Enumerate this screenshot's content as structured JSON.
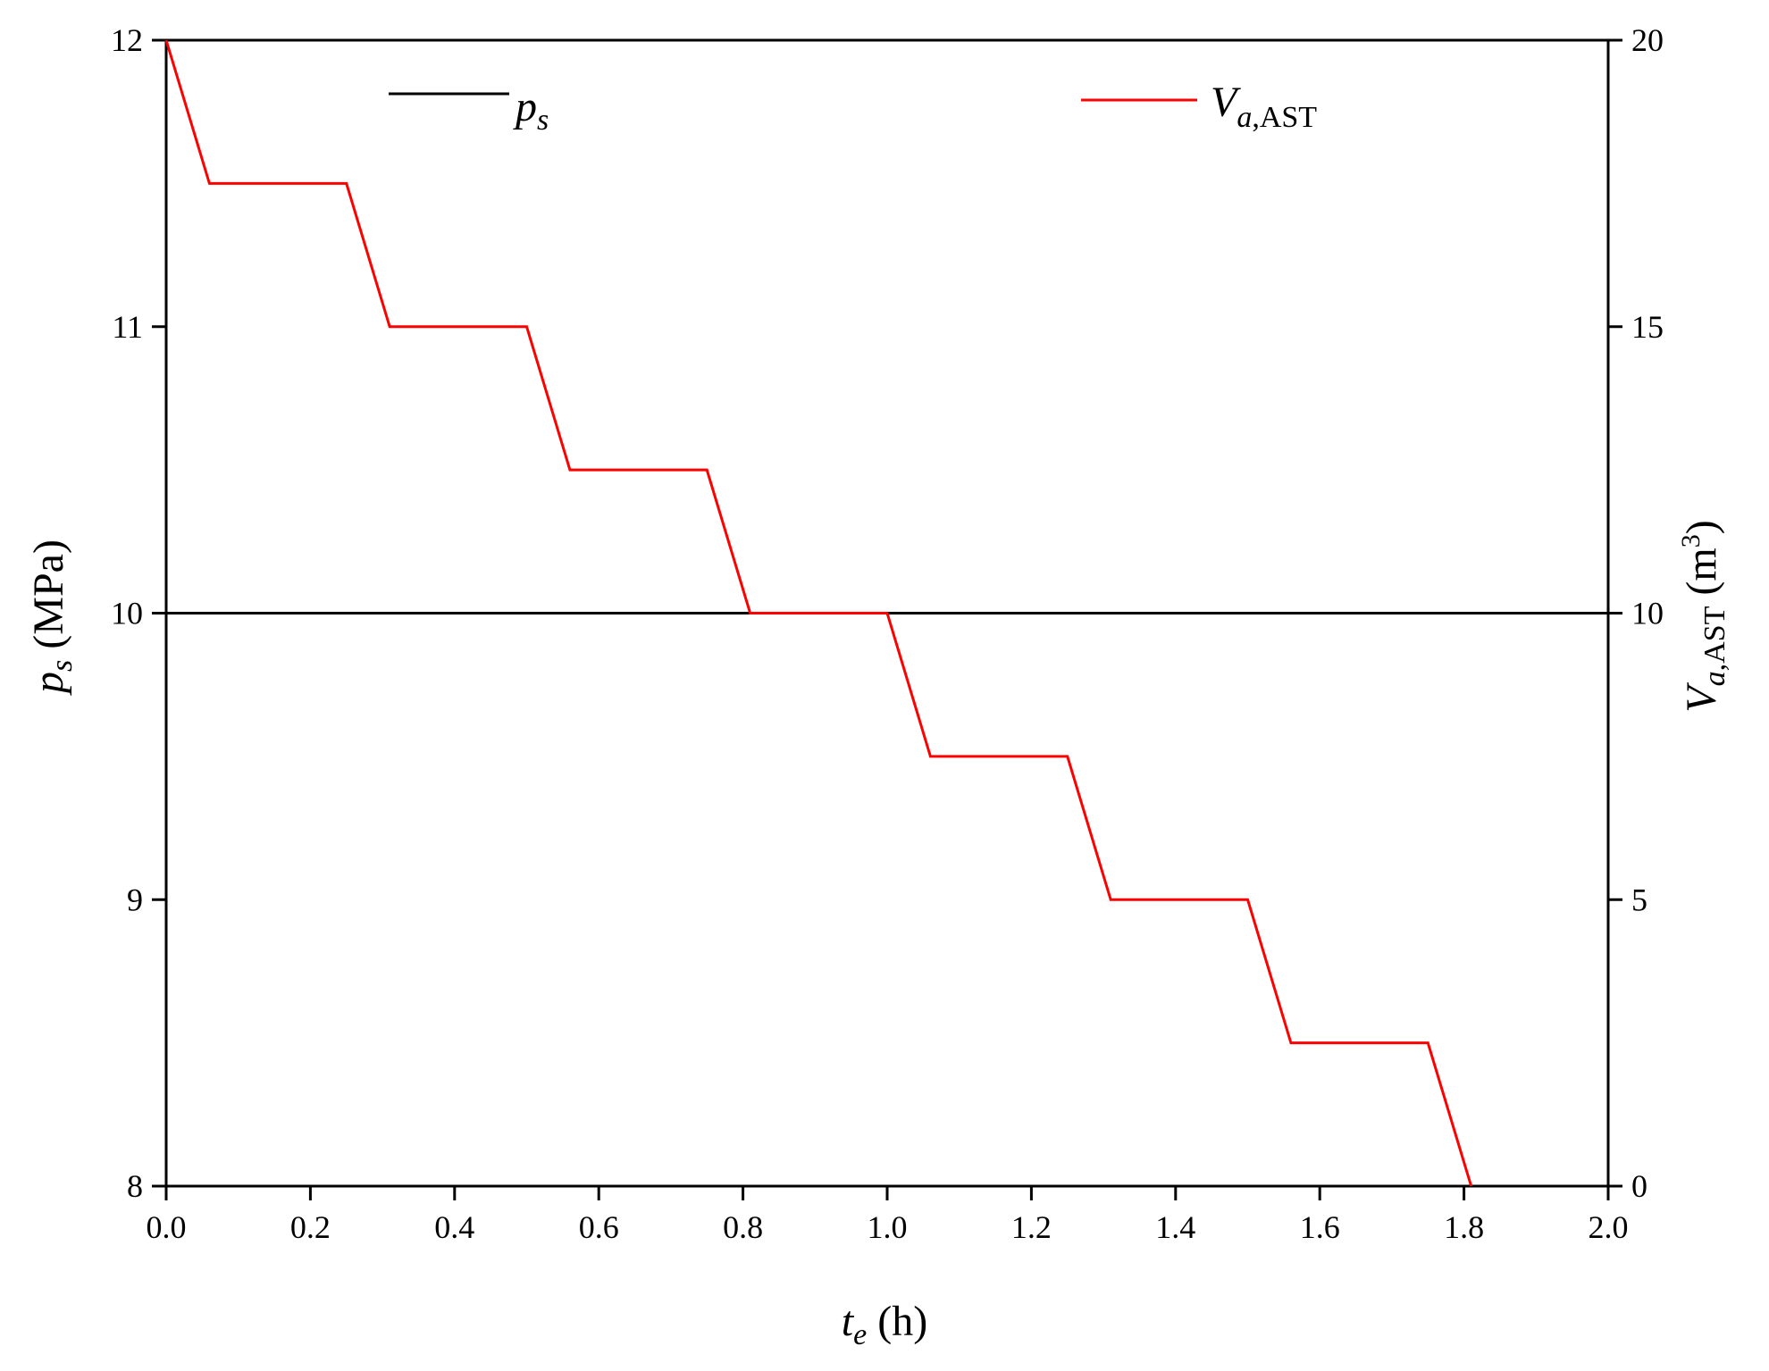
{
  "chart_data": {
    "type": "line",
    "x_axis": {
      "label_main": "t",
      "label_sub": "e",
      "label_unit": " (h)",
      "range": [
        0,
        2.0
      ],
      "ticks": [
        0.0,
        0.2,
        0.4,
        0.6,
        0.8,
        1.0,
        1.2,
        1.4,
        1.6,
        1.8,
        2.0
      ],
      "tick_labels": [
        "0.0",
        "0.2",
        "0.4",
        "0.6",
        "0.8",
        "1.0",
        "1.2",
        "1.4",
        "1.6",
        "1.8",
        "2.0"
      ]
    },
    "y_left_axis": {
      "label_main": "p",
      "label_sub": "s",
      "label_unit": " (MPa)",
      "range": [
        8,
        12
      ],
      "ticks": [
        8,
        9,
        10,
        11,
        12
      ],
      "tick_labels": [
        "8",
        "9",
        "10",
        "11",
        "12"
      ]
    },
    "y_right_axis": {
      "label_main": "V",
      "label_sub_italic": "a",
      "label_sub_rest": ",AST",
      "label_unit_pre": " (m",
      "label_unit_sup": "3",
      "label_unit_post": ")",
      "range": [
        0,
        20
      ],
      "ticks": [
        0,
        5,
        10,
        15,
        20
      ],
      "tick_labels": [
        "0",
        "5",
        "10",
        "15",
        "20"
      ]
    },
    "series": [
      {
        "name_main": "p",
        "name_sub": "s",
        "axis": "left",
        "color": "#000000",
        "x": [
          0.0,
          2.0
        ],
        "y": [
          10,
          10
        ]
      },
      {
        "name_main": "V",
        "name_sub_italic": "a",
        "name_sub_rest": ",AST",
        "axis": "right",
        "color": "#ff0000",
        "x": [
          0.0,
          0.06,
          0.25,
          0.31,
          0.5,
          0.56,
          0.75,
          0.81,
          1.0,
          1.06,
          1.25,
          1.31,
          1.5,
          1.56,
          1.75,
          1.81
        ],
        "y": [
          20,
          17.5,
          17.5,
          15,
          15,
          12.5,
          12.5,
          10,
          10,
          7.5,
          7.5,
          5,
          5,
          2.5,
          2.5,
          0
        ]
      }
    ],
    "grid": false,
    "legend": "top"
  }
}
